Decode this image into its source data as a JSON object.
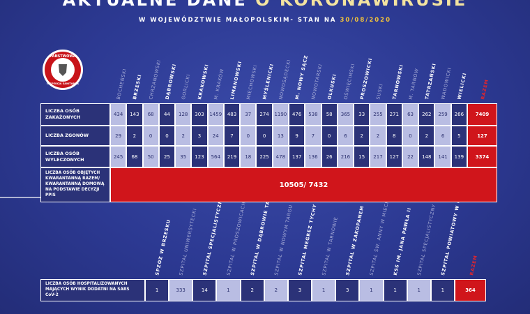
{
  "header": {
    "title_a": "AKTUALNE DANE",
    "title_b": "O KORONAWIRUSIE",
    "subtitle": "W WOJEWÓDZTWIE MAŁOPOLSKIM- STAN NA",
    "date": "30/08/2020"
  },
  "logo": {
    "top": "PAŃSTWOWA",
    "bottom": "INSPEKCJA SANITARNA"
  },
  "districts": {
    "columns": [
      "BOCHEŃSKI",
      "BRZESKI",
      "CHRZANOWSKI",
      "DĄBROWSKI",
      "GORLICKI",
      "KRAKOWSKI",
      "M. KRAKÓW",
      "LIMANOWSKI",
      "MIECHOWSKI",
      "MYŚLENICKI",
      "NOWOSĄDECKI",
      "M. NOWY SĄCZ",
      "NOWOTARSKI",
      "OLKUSKI",
      "OŚWIĘCIMSKI",
      "PROSZOWICKI",
      "SUSKI",
      "TARNOWSKI",
      "M. TARNÓW",
      "TATRZAŃSKI",
      "WADOWICKI",
      "WIELICKI"
    ],
    "total_label": "RAZEM",
    "rows": [
      {
        "label": "LICZBA OSÓB ZAKAŻONYCH",
        "values": [
          434,
          143,
          68,
          44,
          128,
          303,
          1459,
          483,
          37,
          274,
          1190,
          476,
          538,
          58,
          365,
          33,
          255,
          271,
          63,
          262,
          259,
          266
        ],
        "total": 7409
      },
      {
        "label": "LICZBA ZGONÓW",
        "values": [
          29,
          2,
          0,
          0,
          2,
          3,
          24,
          7,
          0,
          0,
          13,
          9,
          7,
          0,
          6,
          2,
          2,
          8,
          0,
          2,
          6,
          5
        ],
        "total": 127
      },
      {
        "label": "LICZBA OSÓB WYLECZONYCH",
        "values": [
          245,
          68,
          50,
          25,
          35,
          123,
          564,
          219,
          18,
          225,
          478,
          137,
          136,
          26,
          216,
          15,
          217,
          127,
          22,
          148,
          141,
          139
        ],
        "total": 3374
      }
    ]
  },
  "quarantine": {
    "label": "LICZBA OSÓB OBJĘTYCH KWARANTANNĄ RAZEM/ KWARANTANNĄ DOMOWĄ NA PODSTAWIE DECYZJI PPIS",
    "value": "10505/ 7432"
  },
  "hospitals": {
    "columns": [
      "SPZOZ W BRZESKU",
      "SZPITAL UNIWERSYTECKI",
      "SZPITAL SPECJALISTYCZNY IM. ŻEROMSKIEGO",
      "SZPITAL W PROSZOWICACH",
      "SZPITAL W DĄBROWIE TARNOWSKIEJ",
      "SZPITAL W NOWYM TARGU",
      "SZPITAL MEGREZ TYCHY",
      "SZPITAL W TARNOWIE",
      "SZPITAL W ZAKOPANEM",
      "SZPITAL ŚW. ANNY W MIECHOWIE",
      "KSS IM. JANA PAWŁA II",
      "SZPITAL SPECJALISTYCZNY UL. 12/4 KRAKÓW",
      "SZPITAL POWIATOWY W CHRZANOWIE"
    ],
    "total_label": "RAZEM",
    "row": {
      "label": "LICZBA OSÓB HOSPITALIZOWANYCH MAJĄCYCH WYNIK DODATNI NA SARS CoV-2",
      "values": [
        1,
        333,
        14,
        1,
        2,
        2,
        3,
        1,
        3,
        1,
        1,
        1,
        1
      ],
      "total": 364
    }
  }
}
